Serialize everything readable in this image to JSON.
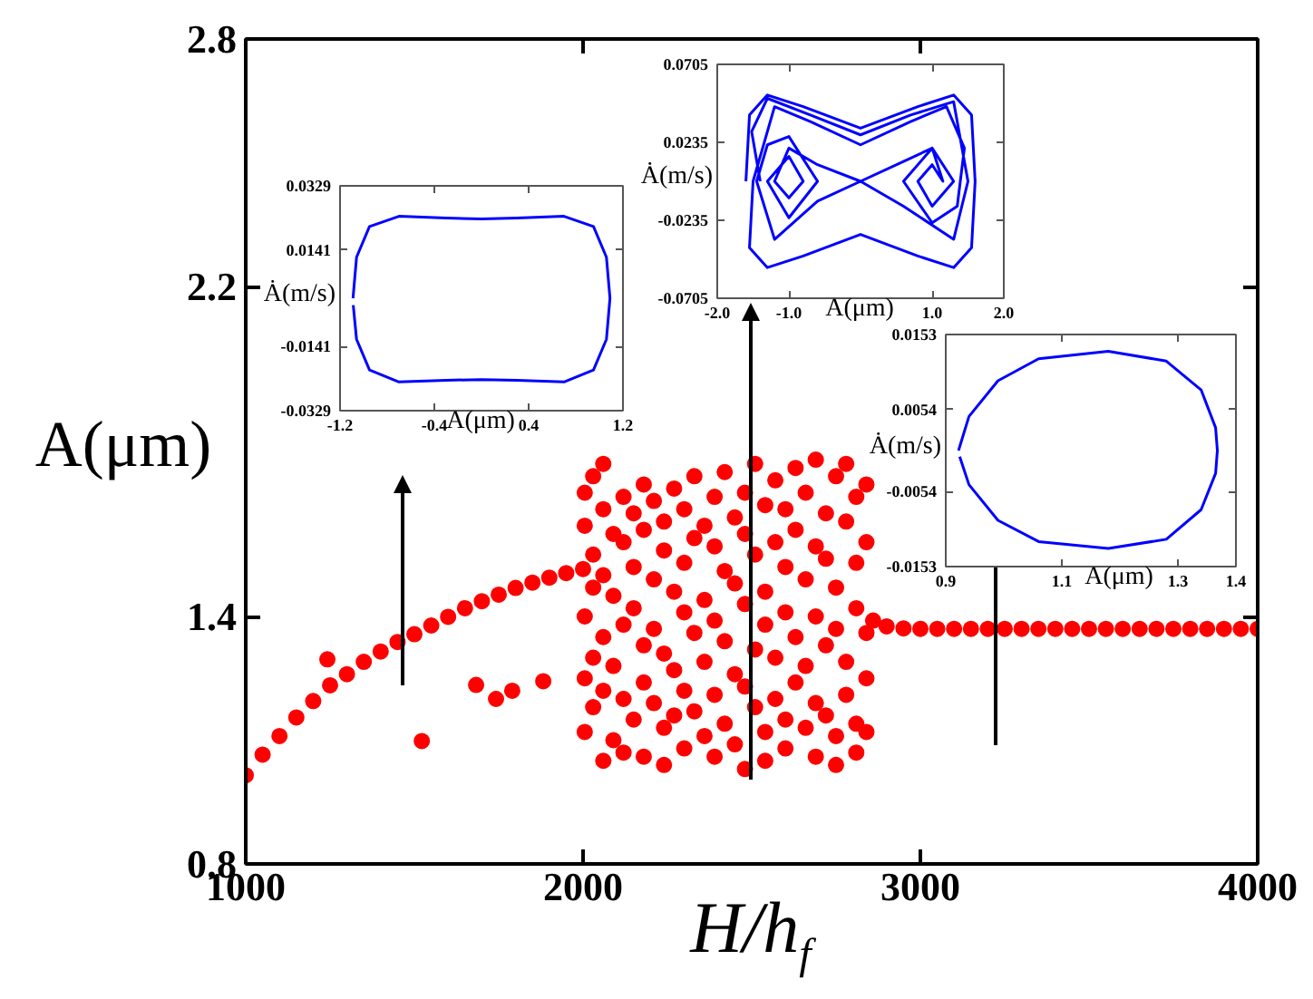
{
  "chart_data": [
    {
      "type": "scatter",
      "xlabel": "H/h$_{f}$",
      "ylabel": "A(μm)",
      "xlim": [
        1000,
        4000
      ],
      "ylim": [
        0.8,
        2.8
      ],
      "xticks": [
        1000,
        2000,
        3000,
        4000
      ],
      "yticks": [
        0.8,
        1.4,
        2.2,
        2.8
      ],
      "marker": "circle",
      "series": [
        {
          "color": "#ff0000",
          "x": [
            1000,
            1050,
            1100,
            1150,
            1200,
            1250,
            1300,
            1350,
            1400,
            1450,
            1500,
            1550,
            1600,
            1650,
            1700,
            1750,
            1800,
            1850,
            1900,
            1950,
            2000,
            1242,
            1522,
            1683,
            1742,
            1790,
            1882,
            2860,
            2900,
            2950,
            3000,
            3050,
            3100,
            3150,
            3200,
            3250,
            3300,
            3350,
            3400,
            3450,
            3500,
            3550,
            3600,
            3650,
            3700,
            3750,
            3800,
            3850,
            3900,
            3950,
            4000
          ],
          "values": [
            1.015,
            1.065,
            1.11,
            1.155,
            1.195,
            1.233,
            1.26,
            1.29,
            1.315,
            1.338,
            1.357,
            1.378,
            1.399,
            1.42,
            1.437,
            1.453,
            1.469,
            1.482,
            1.494,
            1.505,
            1.515,
            1.296,
            1.098,
            1.234,
            1.2,
            1.22,
            1.243,
            1.39,
            1.376,
            1.371,
            1.37,
            1.37,
            1.37,
            1.37,
            1.37,
            1.37,
            1.37,
            1.37,
            1.37,
            1.37,
            1.37,
            1.37,
            1.37,
            1.37,
            1.37,
            1.37,
            1.37,
            1.37,
            1.37,
            1.37,
            1.37
          ]
        },
        {
          "color": "#ff0000",
          "x": [
            2005,
            2005,
            2005,
            2005,
            2005,
            2030,
            2030,
            2030,
            2030,
            2030,
            2060,
            2060,
            2060,
            2060,
            2060,
            2060,
            2090,
            2090,
            2090,
            2090,
            2120,
            2120,
            2120,
            2120,
            2120,
            2150,
            2150,
            2150,
            2150,
            2180,
            2180,
            2180,
            2180,
            2180,
            2210,
            2210,
            2210,
            2210,
            2240,
            2240,
            2240,
            2240,
            2240,
            2270,
            2270,
            2270,
            2270,
            2300,
            2300,
            2300,
            2300,
            2300,
            2330,
            2330,
            2330,
            2330,
            2360,
            2360,
            2360,
            2360,
            2390,
            2390,
            2390,
            2390,
            2390,
            2420,
            2420,
            2420,
            2420,
            2450,
            2450,
            2450,
            2450,
            2480,
            2480,
            2480,
            2480,
            2480,
            2510,
            2510,
            2510,
            2510,
            2540,
            2540,
            2540,
            2540,
            2540,
            2570,
            2570,
            2570,
            2570,
            2600,
            2600,
            2600,
            2600,
            2600,
            2630,
            2630,
            2630,
            2630,
            2660,
            2660,
            2660,
            2660,
            2690,
            2690,
            2690,
            2690,
            2690,
            2720,
            2720,
            2720,
            2720,
            2750,
            2750,
            2750,
            2750,
            2750,
            2780,
            2780,
            2780,
            2780,
            2810,
            2810,
            2810,
            2810,
            2810,
            2840,
            2840,
            2840,
            2840,
            2840
          ],
          "values": [
            1.7,
            1.62,
            1.4,
            1.25,
            1.12,
            1.74,
            1.55,
            1.47,
            1.3,
            1.18,
            1.77,
            1.66,
            1.5,
            1.35,
            1.22,
            1.05,
            1.6,
            1.45,
            1.28,
            1.1,
            1.69,
            1.58,
            1.38,
            1.2,
            1.07,
            1.65,
            1.52,
            1.42,
            1.15,
            1.72,
            1.61,
            1.33,
            1.24,
            1.06,
            1.68,
            1.49,
            1.37,
            1.19,
            1.63,
            1.56,
            1.31,
            1.13,
            1.04,
            1.71,
            1.46,
            1.27,
            1.16,
            1.66,
            1.53,
            1.41,
            1.22,
            1.08,
            1.74,
            1.59,
            1.36,
            1.17,
            1.62,
            1.44,
            1.29,
            1.11,
            1.69,
            1.57,
            1.39,
            1.21,
            1.06,
            1.75,
            1.51,
            1.34,
            1.14,
            1.64,
            1.48,
            1.26,
            1.09,
            1.7,
            1.6,
            1.43,
            1.23,
            1.03,
            1.77,
            1.55,
            1.32,
            1.18,
            1.67,
            1.46,
            1.38,
            1.12,
            1.05,
            1.73,
            1.58,
            1.3,
            1.2,
            1.66,
            1.52,
            1.41,
            1.15,
            1.08,
            1.76,
            1.61,
            1.35,
            1.24,
            1.7,
            1.49,
            1.28,
            1.13,
            1.78,
            1.57,
            1.4,
            1.19,
            1.06,
            1.65,
            1.54,
            1.33,
            1.16,
            1.74,
            1.47,
            1.37,
            1.11,
            1.04,
            1.77,
            1.63,
            1.29,
            1.21,
            1.69,
            1.53,
            1.42,
            1.14,
            1.07,
            1.72,
            1.58,
            1.36,
            1.25,
            1.12
          ]
        }
      ]
    },
    {
      "type": "line",
      "xlabel": "A(μm)",
      "ylabel": "Ȧ(m/s)",
      "xlim": [
        -1.2,
        1.2
      ],
      "ylim": [
        -0.0329,
        0.0329
      ],
      "xticks": [
        -1.2,
        -0.4,
        0.4,
        1.2
      ],
      "yticks": [
        -0.0329,
        -0.0141,
        0.0141,
        0.0329
      ],
      "series": [
        {
          "color": "#0000ff",
          "x": [
            -1.09,
            -1.06,
            -0.95,
            -0.7,
            -0.3,
            0,
            0.3,
            0.7,
            0.95,
            1.06,
            1.09,
            1.06,
            0.95,
            0.7,
            0.3,
            0,
            -0.3,
            -0.7,
            -0.95,
            -1.06,
            -1.088
          ],
          "values": [
            0,
            0.012,
            0.021,
            0.024,
            0.0235,
            0.0232,
            0.0235,
            0.024,
            0.021,
            0.012,
            0,
            -0.012,
            -0.021,
            -0.0245,
            -0.024,
            -0.0238,
            -0.024,
            -0.0245,
            -0.021,
            -0.012,
            -0.002
          ]
        }
      ]
    },
    {
      "type": "line",
      "xlabel": "A(μm)",
      "ylabel": "Ȧ(m/s)",
      "xlim": [
        -2.0,
        2.0
      ],
      "ylim": [
        -0.0705,
        0.0705
      ],
      "xticks": [
        {
          "value": -2,
          "label": "-2.0"
        },
        {
          "value": -1,
          "label": "-1.0"
        },
        {
          "value": 1,
          "label": "1.0"
        },
        {
          "value": 2,
          "label": "2.0"
        }
      ],
      "yticks": [
        -0.0705,
        -0.0235,
        0.0235,
        0.0705
      ],
      "series": [
        {
          "color": "#0000ff",
          "x": [
            -1.6,
            -1.55,
            -1.3,
            -0.8,
            0,
            0.8,
            1.3,
            1.55,
            1.6,
            1.55,
            1.3,
            0.8,
            0,
            -0.8,
            -1.3,
            -1.55,
            -1.5,
            -1.2,
            -0.7,
            0,
            0.7,
            1.2,
            1.45,
            1.35,
            1.0,
            0.6,
            1.0,
            1.3,
            1.0,
            0.8,
            1.0,
            1.15,
            1.0,
            0.6,
            0,
            -0.6,
            -1.2,
            -1.45,
            -1.3,
            -1.0,
            -0.6,
            -1.0,
            -1.3,
            -1.0,
            -0.8,
            -1.0,
            -1.2,
            -1.0,
            -0.6,
            0,
            0.6,
            1.3,
            1.5,
            1.3,
            0.7,
            0,
            -0.7,
            -1.3,
            -1.52,
            -1.4
          ],
          "values": [
            0,
            0.04,
            0.052,
            0.045,
            0.032,
            0.045,
            0.052,
            0.04,
            0,
            -0.04,
            -0.052,
            -0.045,
            -0.032,
            -0.045,
            -0.052,
            -0.04,
            0,
            0.045,
            0.036,
            0.022,
            0.036,
            0.045,
            0.02,
            -0.015,
            -0.025,
            0,
            0.02,
            0,
            -0.015,
            0,
            0.01,
            0,
            0.02,
            0.012,
            0,
            -0.012,
            -0.035,
            0,
            0.022,
            0.027,
            0,
            -0.022,
            0,
            0.015,
            0,
            -0.01,
            0,
            0.02,
            0.01,
            0,
            -0.015,
            -0.035,
            0,
            0.048,
            0.04,
            0.028,
            0.04,
            0.05,
            0.03,
            0
          ]
        }
      ]
    },
    {
      "type": "line",
      "xlabel": "A(μm)",
      "ylabel": "Ȧ(m/s)",
      "xlim": [
        0.9,
        1.4
      ],
      "ylim": [
        -0.0153,
        0.0153
      ],
      "xticks": [
        0.9,
        1.1,
        1.3,
        1.4
      ],
      "yticks": [
        -0.0153,
        -0.0054,
        0.0054,
        0.0153
      ],
      "series": [
        {
          "color": "#0000ff",
          "x": [
            0.922,
            0.94,
            0.99,
            1.06,
            1.18,
            1.28,
            1.34,
            1.365,
            1.368,
            1.365,
            1.34,
            1.28,
            1.18,
            1.06,
            0.99,
            0.94,
            0.924
          ],
          "values": [
            0,
            0.0045,
            0.0092,
            0.0121,
            0.0131,
            0.0118,
            0.008,
            0.003,
            0,
            -0.003,
            -0.0078,
            -0.0117,
            -0.0129,
            -0.012,
            -0.0092,
            -0.0045,
            -0.0008
          ]
        }
      ]
    }
  ]
}
